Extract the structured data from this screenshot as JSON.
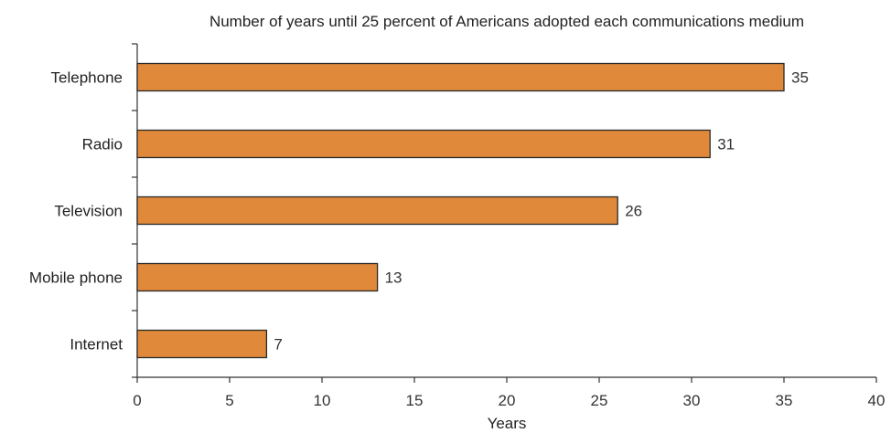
{
  "chart_data": {
    "type": "bar",
    "orientation": "horizontal",
    "title": "Number of years until 25 percent of Americans adopted each communications medium",
    "categories": [
      "Telephone",
      "Radio",
      "Television",
      "Mobile phone",
      "Internet"
    ],
    "values": [
      35,
      31,
      26,
      13,
      7
    ],
    "xlabel": "Years",
    "ylabel": "",
    "xlim": [
      0,
      40
    ],
    "xticks": [
      "0",
      "5",
      "10",
      "15",
      "20",
      "25",
      "30",
      "35",
      "40"
    ],
    "data_labels": [
      "35",
      "31",
      "26",
      "13",
      "7"
    ],
    "bar_color": "#e0893a",
    "grid": false,
    "legend": "none"
  }
}
